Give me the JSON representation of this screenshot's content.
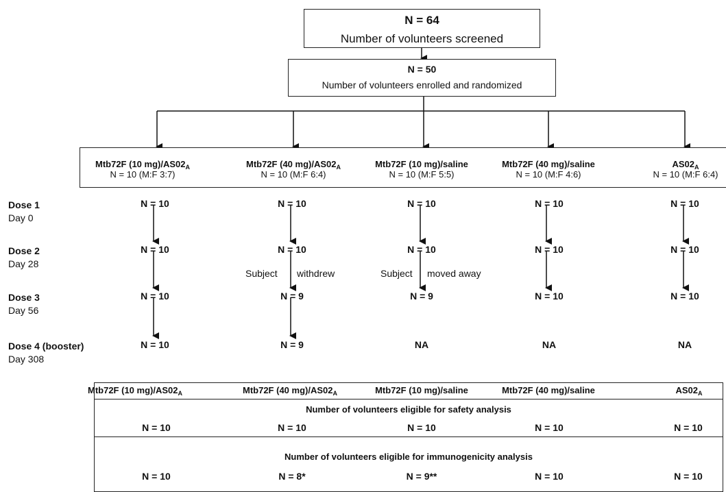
{
  "screened": {
    "n": "N = 64",
    "label": "Number of volunteers screened"
  },
  "enrolled": {
    "n": "N = 50",
    "label": "Number of volunteers enrolled and randomized"
  },
  "groups": [
    {
      "name": "Mtb72F (10 mg)/AS02",
      "name_sub": "A",
      "detail": "N = 10 (M:F 3:7)"
    },
    {
      "name": "Mtb72F (40 mg)/AS02",
      "name_sub": "A",
      "detail": "N = 10 (M:F 6:4)"
    },
    {
      "name": "Mtb72F (10 mg)/saline",
      "name_sub": "",
      "detail": "N = 10 (M:F 5:5)"
    },
    {
      "name": "Mtb72F (40 mg)/saline",
      "name_sub": "",
      "detail": "N = 10 (M:F 4:6)"
    },
    {
      "name": "AS02",
      "name_sub": "A",
      "detail": "N = 10 (M:F 6:4)"
    }
  ],
  "doses": [
    {
      "label": "Dose 1",
      "day": "Day 0",
      "values": [
        "N = 10",
        "N = 10",
        "N = 10",
        "N = 10",
        "N = 10"
      ]
    },
    {
      "label": "Dose 2",
      "day": "Day 28",
      "values": [
        "N = 10",
        "N = 10",
        "N = 10",
        "N = 10",
        "N = 10"
      ]
    },
    {
      "label": "Dose 3",
      "day": "Day 56",
      "values": [
        "N = 10",
        "N = 9",
        "N = 9",
        "N = 10",
        "N = 10"
      ]
    },
    {
      "label": "Dose 4 (booster)",
      "day": "Day 308",
      "values": [
        "N = 10",
        "N = 9",
        "NA",
        "NA",
        "NA"
      ]
    }
  ],
  "dropouts": [
    {
      "left": "Subject",
      "right": "withdrew"
    },
    {
      "left": "Subject",
      "right": "moved away"
    }
  ],
  "results": {
    "safety_title": "Number of volunteers eligible for safety analysis",
    "safety_values": [
      "N = 10",
      "N = 10",
      "N = 10",
      "N = 10",
      "N = 10"
    ],
    "immuno_title": "Number of volunteers eligible for immunogenicity analysis",
    "immuno_values": [
      "N = 10",
      "N = 8*",
      "N = 9**",
      "N = 10",
      "N = 10"
    ]
  }
}
